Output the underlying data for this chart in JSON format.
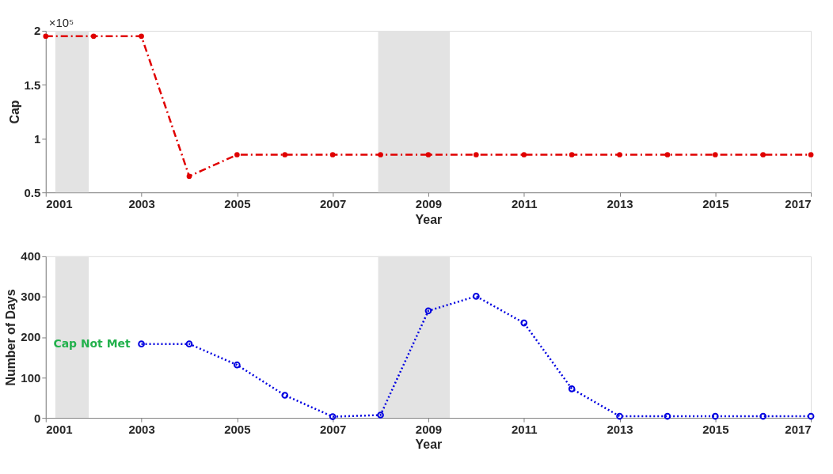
{
  "chart_data": [
    {
      "type": "line",
      "xlabel": "Year",
      "ylabel": "Cap",
      "annotations": [
        "×10⁵"
      ],
      "x": [
        2001,
        2002,
        2003,
        2004,
        2005,
        2006,
        2007,
        2008,
        2009,
        2010,
        2011,
        2012,
        2013,
        2014,
        2015,
        2016,
        2017
      ],
      "series": [
        {
          "color": "#e00000",
          "values": [
            1.95,
            1.95,
            1.95,
            0.65,
            0.85,
            0.85,
            0.85,
            0.85,
            0.85,
            0.85,
            0.85,
            0.85,
            0.85,
            0.85,
            0.85,
            0.85,
            0.85
          ]
        }
      ],
      "xlim": [
        2001,
        2017
      ],
      "xticks": [
        2001,
        2003,
        2005,
        2007,
        2009,
        2011,
        2013,
        2015,
        2017
      ],
      "ylim": [
        0.5,
        2
      ],
      "yticks": [
        0.5,
        1,
        1.5,
        2
      ],
      "bands": [
        {
          "axis": "x",
          "from": 2001.2,
          "to": 2001.9,
          "color": "#e3e3e3"
        },
        {
          "axis": "x",
          "from": 2007.95,
          "to": 2009.45,
          "color": "#e3e3e3"
        }
      ],
      "marker": "circle",
      "line_style": "dashed",
      "grid": false
    },
    {
      "type": "line",
      "xlabel": "Year",
      "ylabel": "Number of Days",
      "annotations": [
        {
          "text": "Cap Not Met",
          "x": 2003,
          "y": 183
        }
      ],
      "x": [
        2003,
        2004,
        2005,
        2006,
        2007,
        2008,
        2009,
        2010,
        2011,
        2012,
        2013,
        2014,
        2015,
        2016,
        2017
      ],
      "series": [
        {
          "color": "#0000e0",
          "values": [
            183,
            183,
            131,
            56,
            3,
            7,
            265,
            301,
            235,
            72,
            4,
            4,
            4,
            4,
            4
          ]
        }
      ],
      "xlim": [
        2001,
        2017
      ],
      "xticks": [
        2001,
        2003,
        2005,
        2007,
        2009,
        2011,
        2013,
        2015,
        2017
      ],
      "ylim": [
        0,
        400
      ],
      "yticks": [
        0,
        100,
        200,
        300,
        400
      ],
      "bands": [
        {
          "axis": "x",
          "from": 2001.2,
          "to": 2001.9,
          "color": "#e3e3e3"
        },
        {
          "axis": "x",
          "from": 2007.95,
          "to": 2009.45,
          "color": "#e3e3e3"
        }
      ],
      "marker": "circle",
      "line_style": "dotted",
      "grid": false
    }
  ]
}
